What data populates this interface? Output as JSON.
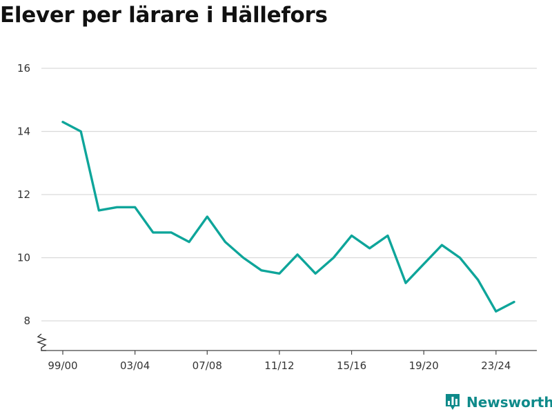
{
  "chart_data": {
    "type": "line",
    "title": "Elever per lärare i Hällefors",
    "xlabel": "",
    "ylabel": "",
    "x": [
      "99/00",
      "00/01",
      "01/02",
      "02/03",
      "03/04",
      "04/05",
      "05/06",
      "06/07",
      "07/08",
      "08/09",
      "09/10",
      "10/11",
      "11/12",
      "12/13",
      "13/14",
      "14/15",
      "15/16",
      "16/17",
      "17/18",
      "18/19",
      "19/20",
      "20/21",
      "21/22",
      "22/23",
      "23/24",
      "24/25"
    ],
    "x_tick_labels": [
      "99/00",
      "03/04",
      "07/08",
      "11/12",
      "15/16",
      "19/20",
      "23/24"
    ],
    "series": [
      {
        "values": [
          14.3,
          14.0,
          11.5,
          11.6,
          11.6,
          10.8,
          10.8,
          10.5,
          11.3,
          10.5,
          10.0,
          9.6,
          9.5,
          10.1,
          9.5,
          10.0,
          10.7,
          10.3,
          10.7,
          9.2,
          9.8,
          10.4,
          10.0,
          9.3,
          8.3,
          8.6
        ]
      }
    ],
    "y_ticks": [
      "8",
      "10",
      "12",
      "14",
      "16"
    ],
    "ylim": [
      7.2,
      16.6
    ],
    "y_axis_break": true,
    "grid": true,
    "line_color": "#0ea59a"
  },
  "brand": {
    "name": "Newsworthy",
    "icon": "bar-chart-logo-icon",
    "color": "#0e8a8a"
  }
}
